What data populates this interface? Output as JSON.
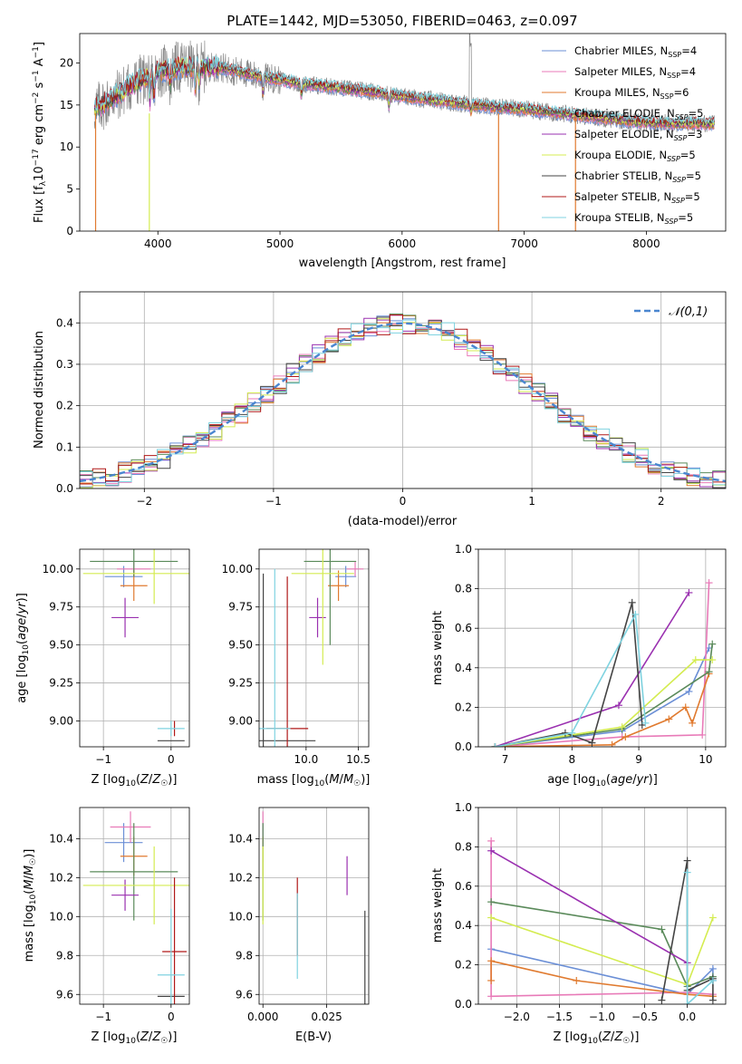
{
  "chart_data": [
    {
      "type": "line",
      "title": "PLATE=1442, MJD=53050, FIBERID=0463, z=0.097",
      "xlabel": "wavelength [Angstrom, rest frame]",
      "ylabel": "Flux [f_λ 10^-17 erg cm^-2 s^-1 A^-1]",
      "xlim": [
        3360,
        8650
      ],
      "ylim": [
        0,
        23.5
      ],
      "xticks": [
        4000,
        5000,
        6000,
        7000,
        8000
      ],
      "yticks": [
        0,
        5,
        10,
        15,
        20
      ],
      "legend_position": "top-right",
      "series": [
        {
          "name": "Chabrier MILES, N_SSP=4",
          "color": "#6b8fd6"
        },
        {
          "name": "Salpeter MILES, N_SSP=4",
          "color": "#e87ab8"
        },
        {
          "name": "Kroupa MILES, N_SSP=6",
          "color": "#e07a2f"
        },
        {
          "name": "Chabrier ELODIE, N_SSP=5",
          "color": "#5a8a5a"
        },
        {
          "name": "Salpeter ELODIE, N_SSP=3",
          "color": "#9a30b0"
        },
        {
          "name": "Kroupa ELODIE, N_SSP=5",
          "color": "#d4ec50"
        },
        {
          "name": "Chabrier STELIB, N_SSP=5",
          "color": "#444444"
        },
        {
          "name": "Salpeter STELIB, N_SSP=5",
          "color": "#b01818"
        },
        {
          "name": "Kroupa STELIB, N_SSP=5",
          "color": "#7fd3e0"
        }
      ],
      "data_color": "#888888",
      "data_x": [
        3480,
        3600,
        3800,
        4000,
        4200,
        4500,
        4800,
        5000,
        5200,
        5500,
        5800,
        6000,
        6300,
        6600,
        6800,
        7000,
        7300,
        7600,
        7900,
        8200,
        8500
      ],
      "data_y": [
        14.5,
        15.5,
        17.5,
        19.0,
        19.5,
        19.5,
        18.5,
        18.0,
        17.5,
        17.0,
        16.5,
        16.0,
        15.5,
        15.0,
        14.7,
        14.5,
        14.0,
        13.5,
        13.0,
        12.8,
        12.8
      ]
    },
    {
      "type": "bar",
      "xlabel": "(data-model)/error",
      "ylabel": "Normed distribution",
      "xlim": [
        -2.5,
        2.5
      ],
      "ylim": [
        0,
        0.475
      ],
      "xticks": [
        -2,
        -1,
        0,
        1,
        2
      ],
      "yticks": [
        0.0,
        0.1,
        0.2,
        0.3,
        0.4
      ],
      "legend": "𝒩(0,1)",
      "legend_position": "top-right",
      "normal_color": "#4a86d0",
      "bin_width": 0.1
    },
    {
      "type": "scatter",
      "xlabel": "Z [log10(Z/Z☉)]",
      "ylabel": "age [log10(age/yr)]",
      "xlim": [
        -1.35,
        0.27
      ],
      "ylim": [
        8.83,
        10.13
      ],
      "xticks": [
        -1,
        0
      ],
      "yticks": [
        9.0,
        9.25,
        9.5,
        9.75,
        10.0
      ],
      "points": [
        {
          "x": -0.7,
          "y": 9.95,
          "xerr": 0.28,
          "yerr": 0.07,
          "color": "#6b8fd6"
        },
        {
          "x": -0.55,
          "y": 10.0,
          "xerr": 0.25,
          "yerr": 0.05,
          "color": "#e87ab8"
        },
        {
          "x": -0.55,
          "y": 9.89,
          "xerr": 0.2,
          "yerr": 0.1,
          "color": "#e07a2f"
        },
        {
          "x": -0.55,
          "y": 10.05,
          "xerr": 0.65,
          "yerr": 0.1,
          "color": "#5a8a5a"
        },
        {
          "x": -0.68,
          "y": 9.68,
          "xerr": 0.2,
          "yerr": 0.13,
          "color": "#9a30b0"
        },
        {
          "x": -0.25,
          "y": 9.97,
          "xerr": 1.05,
          "yerr": 0.2,
          "color": "#d4ec50"
        },
        {
          "x": 0.0,
          "y": 8.87,
          "xerr": 0.2,
          "yerr": 0.0,
          "color": "#444444"
        },
        {
          "x": 0.05,
          "y": 8.95,
          "xerr": 0.0,
          "yerr": 0.05,
          "color": "#b01818"
        },
        {
          "x": 0.0,
          "y": 8.95,
          "xerr": 0.2,
          "yerr": 0.05,
          "color": "#7fd3e0"
        }
      ]
    },
    {
      "type": "scatter",
      "xlabel": "mass [log10(M/M☉)]",
      "ylabel": "",
      "xlim": [
        9.55,
        10.6
      ],
      "ylim": [
        8.83,
        10.13
      ],
      "xticks": [
        10.0,
        10.5
      ],
      "yticks": [
        9.0,
        9.25,
        9.5,
        9.75,
        10.0
      ],
      "points": [
        {
          "x": 10.38,
          "y": 9.95,
          "xerr": 0.1,
          "yerr": 0.07,
          "color": "#6b8fd6"
        },
        {
          "x": 10.47,
          "y": 10.0,
          "xerr": 0.08,
          "yerr": 0.05,
          "color": "#e87ab8"
        },
        {
          "x": 10.31,
          "y": 9.89,
          "xerr": 0.1,
          "yerr": 0.1,
          "color": "#e07a2f"
        },
        {
          "x": 10.23,
          "y": 10.05,
          "xerr": 0.25,
          "yerr": 0.55,
          "color": "#5a8a5a"
        },
        {
          "x": 10.11,
          "y": 9.68,
          "xerr": 0.08,
          "yerr": 0.13,
          "color": "#9a30b0"
        },
        {
          "x": 10.16,
          "y": 9.97,
          "xerr": 0.3,
          "yerr": 0.6,
          "color": "#d4ec50"
        },
        {
          "x": 9.59,
          "y": 8.87,
          "xerr": 0.5,
          "yerr": 1.1,
          "color": "#444444"
        },
        {
          "x": 9.82,
          "y": 8.95,
          "xerr": 0.2,
          "yerr": 1.0,
          "color": "#b01818"
        },
        {
          "x": 9.7,
          "y": 8.95,
          "xerr": 0.15,
          "yerr": 1.05,
          "color": "#7fd3e0"
        }
      ]
    },
    {
      "type": "line",
      "xlabel": "age [log10(age/yr)]",
      "ylabel": "mass weight",
      "xlim": [
        6.6,
        10.3
      ],
      "ylim": [
        0,
        1.0
      ],
      "xticks": [
        7,
        8,
        9,
        10
      ],
      "yticks": [
        0.0,
        0.2,
        0.4,
        0.6,
        0.8,
        1.0
      ],
      "series": [
        {
          "color": "#6b8fd6",
          "x": [
            6.85,
            8.75,
            9.75,
            10.05
          ],
          "y": [
            0.0,
            0.08,
            0.28,
            0.5
          ]
        },
        {
          "color": "#e87ab8",
          "x": [
            6.85,
            8.75,
            9.95,
            10.05
          ],
          "y": [
            0.0,
            0.05,
            0.06,
            0.83
          ]
        },
        {
          "color": "#e07a2f",
          "x": [
            6.85,
            8.6,
            8.8,
            9.45,
            9.7,
            9.8,
            10.05
          ],
          "y": [
            0.0,
            0.01,
            0.05,
            0.14,
            0.2,
            0.12,
            0.37
          ]
        },
        {
          "color": "#5a8a5a",
          "x": [
            6.85,
            8.75,
            10.05,
            10.1
          ],
          "y": [
            0.0,
            0.09,
            0.38,
            0.52
          ]
        },
        {
          "color": "#9a30b0",
          "x": [
            6.85,
            8.7,
            9.75
          ],
          "y": [
            0.0,
            0.21,
            0.78
          ]
        },
        {
          "color": "#d4ec50",
          "x": [
            6.85,
            8.75,
            9.85,
            10.1
          ],
          "y": [
            0.0,
            0.1,
            0.44,
            0.44
          ]
        },
        {
          "color": "#444444",
          "x": [
            6.85,
            7.9,
            8.3,
            8.9,
            9.05
          ],
          "y": [
            0.0,
            0.07,
            0.02,
            0.73,
            0.11
          ]
        },
        {
          "color": "#7fd3e0",
          "x": [
            6.85,
            8.0,
            8.95,
            9.1
          ],
          "y": [
            0.0,
            0.07,
            0.67,
            0.12
          ]
        }
      ]
    },
    {
      "type": "scatter",
      "xlabel": "Z [log10(Z/Z☉)]",
      "ylabel": "mass [log10(M/M☉)]",
      "xlim": [
        -1.35,
        0.27
      ],
      "ylim": [
        9.55,
        10.56
      ],
      "xticks": [
        -1,
        0
      ],
      "yticks": [
        9.6,
        9.8,
        10.0,
        10.2,
        10.4
      ],
      "points": [
        {
          "x": -0.7,
          "y": 10.38,
          "xerr": 0.28,
          "yerr": 0.1,
          "color": "#6b8fd6"
        },
        {
          "x": -0.6,
          "y": 10.46,
          "xerr": 0.3,
          "yerr": 0.08,
          "color": "#e87ab8"
        },
        {
          "x": -0.55,
          "y": 10.31,
          "xerr": 0.2,
          "yerr": 0.1,
          "color": "#e07a2f"
        },
        {
          "x": -0.55,
          "y": 10.23,
          "xerr": 0.65,
          "yerr": 0.25,
          "color": "#5a8a5a"
        },
        {
          "x": -0.68,
          "y": 10.11,
          "xerr": 0.2,
          "yerr": 0.08,
          "color": "#9a30b0"
        },
        {
          "x": -0.25,
          "y": 10.16,
          "xerr": 1.05,
          "yerr": 0.2,
          "color": "#d4ec50"
        },
        {
          "x": 0.0,
          "y": 9.59,
          "xerr": 0.2,
          "yerr": 0.0,
          "color": "#444444"
        },
        {
          "x": 0.05,
          "y": 9.82,
          "xerr": 0.18,
          "yerr": 0.38,
          "color": "#b01818"
        },
        {
          "x": 0.0,
          "y": 9.7,
          "xerr": 0.2,
          "yerr": 0.34,
          "color": "#7fd3e0"
        }
      ]
    },
    {
      "type": "scatter",
      "xlabel": "E(B-V)",
      "ylabel": "",
      "xlim": [
        -0.0015,
        0.0415
      ],
      "ylim": [
        9.55,
        10.56
      ],
      "xticks": [
        0.0,
        0.025
      ],
      "yticks": [
        9.6,
        9.8,
        10.0,
        10.2,
        10.4
      ],
      "points": [
        {
          "x": 0.0,
          "y": 10.38,
          "yerr": 0.1,
          "color": "#6b8fd6"
        },
        {
          "x": 0.0,
          "y": 10.46,
          "yerr": 0.08,
          "color": "#e87ab8"
        },
        {
          "x": 0.0,
          "y": 10.31,
          "yerr": 0.1,
          "color": "#e07a2f"
        },
        {
          "x": 0.0,
          "y": 10.23,
          "yerr": 0.25,
          "color": "#5a8a5a"
        },
        {
          "x": 0.033,
          "y": 10.21,
          "yerr": 0.1,
          "color": "#9a30b0"
        },
        {
          "x": 0.0,
          "y": 10.16,
          "yerr": 0.2,
          "color": "#d4ec50"
        },
        {
          "x": 0.04,
          "y": 9.59,
          "yerr": 0.44,
          "color": "#444444"
        },
        {
          "x": 0.0135,
          "y": 10.0,
          "yerr": 0.2,
          "color": "#b01818"
        },
        {
          "x": 0.0135,
          "y": 9.9,
          "yerr": 0.22,
          "color": "#7fd3e0"
        }
      ]
    },
    {
      "type": "line",
      "xlabel": "Z [log10(Z/Z☉)]",
      "ylabel": "mass weight",
      "xlim": [
        -2.45,
        0.45
      ],
      "ylim": [
        0,
        1.0
      ],
      "xticks": [
        -2.0,
        -1.5,
        -1.0,
        -0.5,
        0.0
      ],
      "yticks": [
        0.0,
        0.2,
        0.4,
        0.6,
        0.8,
        1.0
      ],
      "series": [
        {
          "color": "#6b8fd6",
          "x": [
            -2.3,
            0.0,
            0.3,
            0.3
          ],
          "y": [
            0.28,
            0.05,
            0.18,
            0.12
          ]
        },
        {
          "color": "#e87ab8",
          "x": [
            -2.3,
            -2.3,
            0.0,
            0.3
          ],
          "y": [
            0.83,
            0.04,
            0.06,
            0.05
          ]
        },
        {
          "color": "#e07a2f",
          "x": [
            -2.3,
            -2.3,
            -1.3,
            0.0,
            0.3
          ],
          "y": [
            0.12,
            0.22,
            0.12,
            0.05,
            0.04
          ]
        },
        {
          "color": "#5a8a5a",
          "x": [
            -2.3,
            -0.3,
            0.0,
            0.3
          ],
          "y": [
            0.52,
            0.38,
            0.09,
            0.14
          ]
        },
        {
          "color": "#9a30b0",
          "x": [
            -2.3,
            0.0
          ],
          "y": [
            0.78,
            0.21
          ]
        },
        {
          "color": "#d4ec50",
          "x": [
            -2.3,
            0.0,
            0.3
          ],
          "y": [
            0.44,
            0.1,
            0.44
          ]
        },
        {
          "color": "#444444",
          "x": [
            -0.3,
            0.0,
            0.0,
            0.3,
            0.3
          ],
          "y": [
            0.02,
            0.73,
            0.07,
            0.13,
            0.02
          ]
        },
        {
          "color": "#7fd3e0",
          "x": [
            0.0,
            0.0,
            0.3
          ],
          "y": [
            0.67,
            0.0,
            0.12
          ]
        }
      ]
    }
  ]
}
